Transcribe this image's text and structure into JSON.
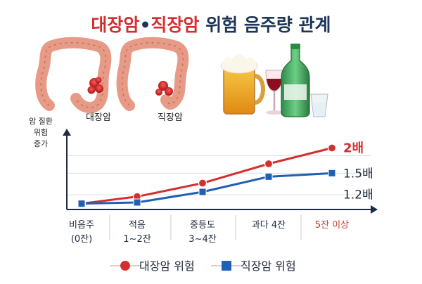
{
  "title": {
    "part1": "대장암",
    "bullet": "•",
    "part2": "직장암",
    "part3": " 위험 음주량 관계"
  },
  "illustrations": {
    "colon_label": "대장암",
    "rectum_label": "직장암",
    "colon_icon": "colon-organ-icon",
    "rectum_icon": "rectum-organ-icon",
    "drinks_icon": "beer-wine-soju-icon"
  },
  "colors": {
    "red": "#d32f2f",
    "blue": "#1f5fb4",
    "title_dark": "#1d3557",
    "highlight": "#c0392b"
  },
  "chart_data": {
    "type": "line",
    "ylabel": [
      "암 질환",
      "위험",
      "증가"
    ],
    "categories": [
      [
        "비음주",
        "(0잔)"
      ],
      [
        "적음",
        "1~2잔"
      ],
      [
        "중등도",
        "3~4잔"
      ],
      [
        "과다 4잔"
      ],
      [
        "5잔 이상"
      ]
    ],
    "ylim": [
      0.9,
      2.1
    ],
    "series": [
      {
        "name": "대장암 위험",
        "values": [
          1.0,
          1.12,
          1.35,
          1.68,
          1.95
        ],
        "marker": "circle",
        "color": "#d32f2f"
      },
      {
        "name": "직장암 위험",
        "values": [
          1.0,
          1.02,
          1.2,
          1.46,
          1.52
        ],
        "marker": "square",
        "color": "#1f5fb4"
      }
    ],
    "value_labels": [
      {
        "text": "2배",
        "value": 1.95,
        "series": 0
      },
      {
        "text": "1.5배",
        "value": 1.52,
        "series": 1
      },
      {
        "text": "1.2배",
        "value": 1.16,
        "series": -1
      }
    ],
    "gridlines": [
      1.15,
      1.52,
      1.82
    ],
    "legend_position": "bottom"
  }
}
